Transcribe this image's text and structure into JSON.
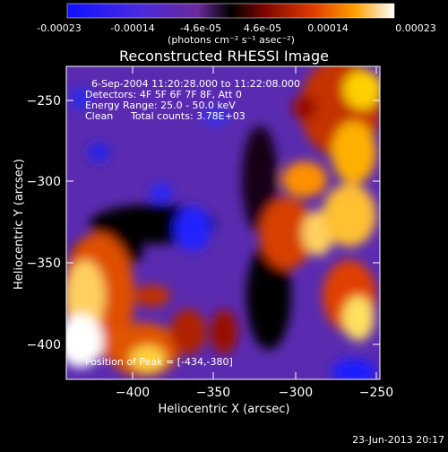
{
  "colors": {
    "background": "#000000",
    "text": "#ffffff",
    "colormap": [
      "#1a1aff",
      "#5b2bd6",
      "#7a1fa0",
      "#000000",
      "#8a0a00",
      "#e03a00",
      "#ff8c00",
      "#ffe060",
      "#ffffff"
    ]
  },
  "colorbar": {
    "tick_labels": [
      "-0.00023",
      "-0.00014",
      "-4.6e-05",
      "4.6e-05",
      "0.00014",
      "0.00023"
    ],
    "unit": "(photons cm⁻² s⁻¹ asec⁻²)"
  },
  "chart_data": {
    "type": "heatmap",
    "title": "Reconstructed RHESSI Image",
    "xlabel": "Heliocentric X (arcsec)",
    "ylabel": "Heliocentric Y (arcsec)",
    "xlim": [
      -435,
      -248
    ],
    "ylim": [
      -417,
      -235
    ],
    "x_ticks": [
      -400,
      -350,
      -300,
      -250
    ],
    "y_ticks": [
      -250,
      -300,
      -350,
      -400
    ],
    "x_tick_labels": [
      "−400",
      "−350",
      "−300",
      "−250"
    ],
    "y_tick_labels": [
      "−250",
      "−300",
      "−350",
      "−400"
    ],
    "colorbar_range": [
      -0.00023,
      0.00023
    ],
    "annotations": {
      "time": "6-Sep-2004 11:20:28.000 to 11:22:08.000",
      "detectors": "Detectors: 4F 5F 6F 7F 8F, Att 0",
      "energy": "Energy Range: 25.0 - 50.0 keV",
      "algorithm": "Clean",
      "counts": "Total counts: 3.78E+03",
      "peak": "Position of Peak = [-434,-380]"
    }
  },
  "footer_date": "23-Jun-2013 20:17"
}
